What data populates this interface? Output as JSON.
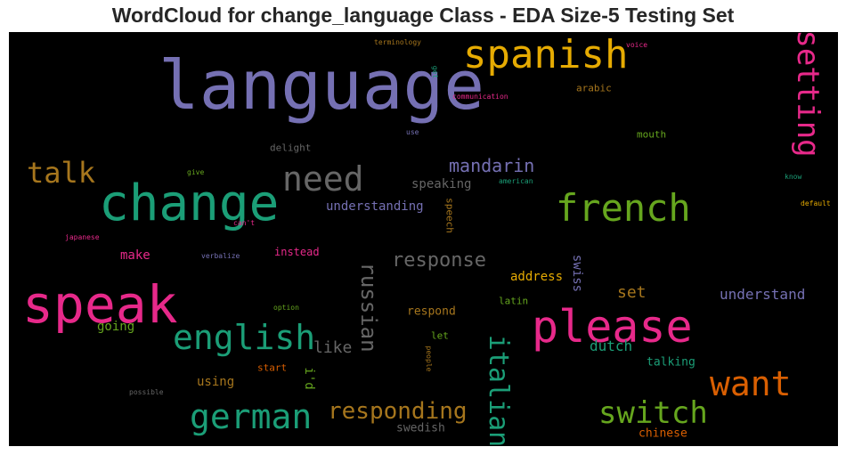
{
  "chart_data": {
    "type": "wordcloud",
    "title": "WordCloud for change_language Class - EDA Size-5 Testing Set",
    "background": "#000000",
    "colormap": "Dark2",
    "words": [
      {
        "text": "language",
        "color": "#7570b3"
      },
      {
        "text": "spanish",
        "color": "#e6ab02"
      },
      {
        "text": "setting",
        "color": "#e7298a"
      },
      {
        "text": "change",
        "color": "#1b9e77"
      },
      {
        "text": "need",
        "color": "#666666"
      },
      {
        "text": "talk",
        "color": "#a6761d"
      },
      {
        "text": "french",
        "color": "#66a61e"
      },
      {
        "text": "mandarin",
        "color": "#7570b3"
      },
      {
        "text": "speak",
        "color": "#e7298a"
      },
      {
        "text": "please",
        "color": "#e7298a"
      },
      {
        "text": "english",
        "color": "#1b9e77"
      },
      {
        "text": "response",
        "color": "#666666"
      },
      {
        "text": "russian",
        "color": "#666666"
      },
      {
        "text": "german",
        "color": "#1b9e77"
      },
      {
        "text": "want",
        "color": "#d95f02"
      },
      {
        "text": "switch",
        "color": "#66a61e"
      },
      {
        "text": "italian",
        "color": "#1b9e77"
      },
      {
        "text": "responding",
        "color": "#a6761d"
      },
      {
        "text": "understanding",
        "color": "#7570b3"
      },
      {
        "text": "speaking",
        "color": "#666666"
      },
      {
        "text": "understand",
        "color": "#7570b3"
      },
      {
        "text": "set",
        "color": "#a6761d"
      },
      {
        "text": "make",
        "color": "#e7298a"
      },
      {
        "text": "like",
        "color": "#666666"
      },
      {
        "text": "going",
        "color": "#66a61e"
      },
      {
        "text": "instead",
        "color": "#e7298a"
      },
      {
        "text": "address",
        "color": "#e6ab02"
      },
      {
        "text": "swiss",
        "color": "#7570b3"
      },
      {
        "text": "respond",
        "color": "#a6761d"
      },
      {
        "text": "dutch",
        "color": "#1b9e77"
      },
      {
        "text": "talking",
        "color": "#1b9e77"
      },
      {
        "text": "using",
        "color": "#a6761d"
      },
      {
        "text": "i'd",
        "color": "#66a61e"
      },
      {
        "text": "swedish",
        "color": "#666666"
      },
      {
        "text": "chinese",
        "color": "#d95f02"
      },
      {
        "text": "speech",
        "color": "#a6761d"
      },
      {
        "text": "arabic",
        "color": "#a6761d"
      },
      {
        "text": "mouth",
        "color": "#66a61e"
      },
      {
        "text": "delight",
        "color": "#666666"
      },
      {
        "text": "latin",
        "color": "#66a61e"
      },
      {
        "text": "let",
        "color": "#66a61e"
      },
      {
        "text": "start",
        "color": "#d95f02"
      },
      {
        "text": "terminology",
        "color": "#a6761d"
      },
      {
        "text": "voice",
        "color": "#e7298a"
      },
      {
        "text": "get",
        "color": "#1b9e77"
      },
      {
        "text": "communication",
        "color": "#e7298a"
      },
      {
        "text": "use",
        "color": "#7570b3"
      },
      {
        "text": "give",
        "color": "#66a61e"
      },
      {
        "text": "american",
        "color": "#1b9e77"
      },
      {
        "text": "know",
        "color": "#1b9e77"
      },
      {
        "text": "default",
        "color": "#e6ab02"
      },
      {
        "text": "can't",
        "color": "#e7298a"
      },
      {
        "text": "japanese",
        "color": "#e7298a"
      },
      {
        "text": "verbalize",
        "color": "#7570b3"
      },
      {
        "text": "option",
        "color": "#66a61e"
      },
      {
        "text": "people",
        "color": "#a6761d"
      },
      {
        "text": "possible",
        "color": "#666666"
      }
    ]
  }
}
